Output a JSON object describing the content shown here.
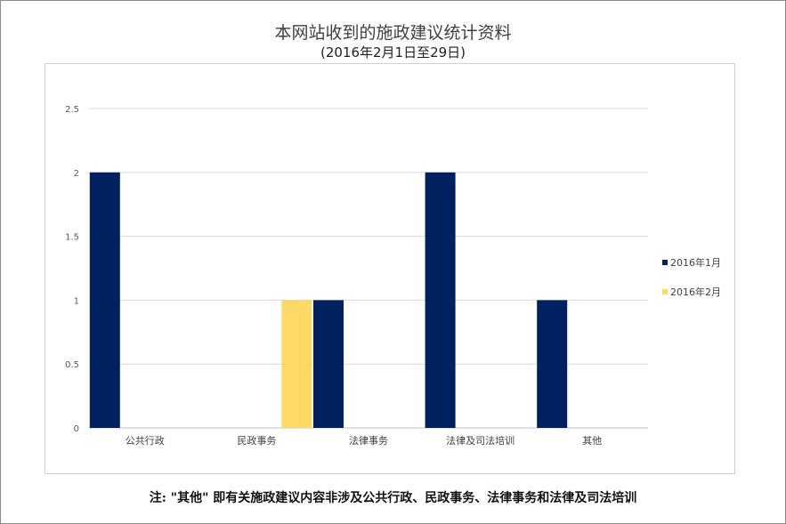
{
  "chart_data": {
    "type": "bar",
    "title": "本网站收到的施政建议统计资料",
    "subtitle": "(2016年2月1日至29日)",
    "categories": [
      "公共行政",
      "民政事务",
      "法律事务",
      "法律及司法培训",
      "其他"
    ],
    "series": [
      {
        "name": "2016年1月",
        "color": "#002060",
        "values": [
          2,
          0,
          1,
          2,
          1
        ]
      },
      {
        "name": "2016年2月",
        "color": "#FFD966",
        "values": [
          0,
          1,
          0,
          0,
          0
        ]
      }
    ],
    "ylim": [
      0,
      2.5
    ],
    "yticks": [
      "0",
      "0.5",
      "1",
      "1.5",
      "2",
      "2.5"
    ],
    "grid": true,
    "legend_position": "right"
  },
  "note": "注: \"其他\" 即有关施政建议内容非涉及公共行政、民政事务、法律事务和法律及司法培训"
}
